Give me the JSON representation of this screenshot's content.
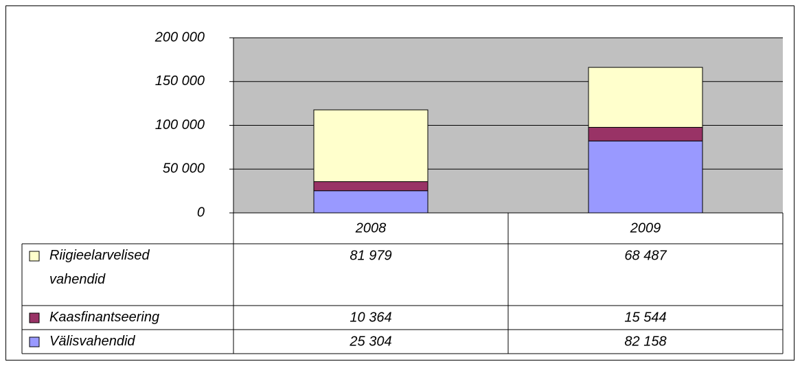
{
  "chart_data": {
    "type": "bar",
    "stacked": true,
    "categories": [
      "2008",
      "2009"
    ],
    "series": [
      {
        "name": "Riigieelarvelised vahendid",
        "color": "#ffffcc",
        "values": [
          81979,
          68487
        ],
        "value_labels": [
          "81 979",
          "68 487"
        ]
      },
      {
        "name": "Kaasfinantseering",
        "color": "#993366",
        "values": [
          10364,
          15544
        ],
        "value_labels": [
          "10 364",
          "15 544"
        ]
      },
      {
        "name": "Välisvahendid",
        "color": "#9999ff",
        "values": [
          25304,
          82158
        ],
        "value_labels": [
          "25 304",
          "82 158"
        ]
      }
    ],
    "ylim": [
      0,
      200000
    ],
    "yticks": [
      0,
      {
        "value": 50000,
        "label": "50 000"
      },
      {
        "value": 100000,
        "label": "100 000"
      },
      {
        "value": 150000,
        "label": "150 000"
      },
      {
        "value": 200000,
        "label": "200 000"
      }
    ],
    "grid": true,
    "plot_background": "#c0c0c0"
  }
}
